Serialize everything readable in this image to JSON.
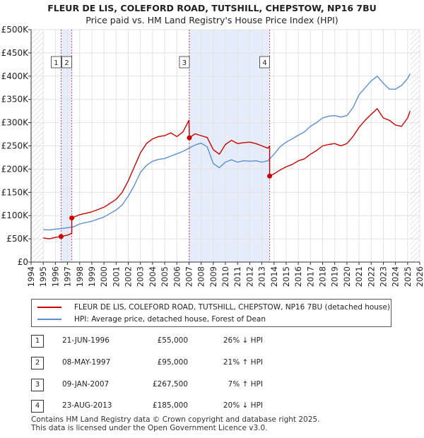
{
  "header": {
    "title": "FLEUR DE LIS, COLEFORD ROAD, TUTSHILL, CHEPSTOW, NP16 7BU",
    "subtitle": "Price paid vs. HM Land Registry's House Price Index (HPI)"
  },
  "colors": {
    "property": "#cc0000",
    "hpi": "#5b8fd0",
    "shade": "#e5ecfa",
    "marker_border": "#cc0000"
  },
  "chart_data": {
    "type": "line",
    "title": "FLEUR DE LIS, COLEFORD ROAD, TUTSHILL, CHEPSTOW, NP16 7BU",
    "subtitle": "Price paid vs. HM Land Registry's House Price Index (HPI)",
    "xlabel": "",
    "ylabel": "",
    "xlim": [
      1994,
      2026
    ],
    "ylim": [
      0,
      500000
    ],
    "y_ticks": [
      0,
      50000,
      100000,
      150000,
      200000,
      250000,
      300000,
      350000,
      400000,
      450000,
      500000
    ],
    "y_tick_labels": [
      "£0",
      "£50K",
      "£100K",
      "£150K",
      "£200K",
      "£250K",
      "£300K",
      "£350K",
      "£400K",
      "£450K",
      "£500K"
    ],
    "x_ticks": [
      1994,
      1995,
      1996,
      1997,
      1998,
      1999,
      2000,
      2001,
      2002,
      2003,
      2004,
      2005,
      2006,
      2007,
      2008,
      2009,
      2010,
      2011,
      2012,
      2013,
      2014,
      2015,
      2016,
      2017,
      2018,
      2019,
      2020,
      2021,
      2022,
      2023,
      2024,
      2025,
      2026
    ],
    "grid": true,
    "shaded_ranges": [
      [
        1996.47,
        1997.35
      ],
      [
        2007.03,
        2013.64
      ]
    ],
    "hatched_ranges": [
      [
        1994,
        1995
      ],
      [
        2025.2,
        2026
      ]
    ],
    "series": [
      {
        "name": "FLEUR DE LIS, COLEFORD ROAD, TUTSHILL, CHEPSTOW, NP16 7BU (detached house)",
        "x": [
          1995.0,
          1995.5,
          1996.0,
          1996.47,
          1996.47,
          1997.0,
          1997.35,
          1997.35,
          1998,
          1999,
          2000,
          2001,
          2001.5,
          2002,
          2002.5,
          2003,
          2003.5,
          2004,
          2004.5,
          2005,
          2005.5,
          2006,
          2006.5,
          2007.0,
          2007.03,
          2007.5,
          2008,
          2008.5,
          2009,
          2009.5,
          2010,
          2010.5,
          2011,
          2011.5,
          2012,
          2012.5,
          2013,
          2013.5,
          2013.64,
          2013.64,
          2014,
          2014.5,
          2015,
          2015.5,
          2016,
          2016.5,
          2017,
          2017.5,
          2018,
          2018.5,
          2019,
          2019.5,
          2020,
          2020.5,
          2021,
          2021.5,
          2022,
          2022.5,
          2023,
          2023.5,
          2024,
          2024.5,
          2025,
          2025.2
        ],
        "values": [
          52000,
          50000,
          53000,
          55000,
          55000,
          58000,
          62000,
          95000,
          102000,
          108000,
          118000,
          135000,
          150000,
          175000,
          205000,
          235000,
          255000,
          265000,
          270000,
          272000,
          278000,
          270000,
          280000,
          305000,
          267500,
          276000,
          272000,
          268000,
          242000,
          232000,
          253000,
          262000,
          255000,
          257000,
          258000,
          255000,
          250000,
          245000,
          250000,
          185000,
          190000,
          198000,
          205000,
          210000,
          218000,
          222000,
          232000,
          240000,
          250000,
          253000,
          255000,
          250000,
          255000,
          270000,
          290000,
          305000,
          318000,
          330000,
          310000,
          305000,
          295000,
          292000,
          310000,
          325000
        ]
      },
      {
        "name": "HPI: Average price, detached house, Forest of Dean",
        "x": [
          1995.0,
          1995.5,
          1996.0,
          1996.5,
          1997.0,
          1997.5,
          1998,
          1999,
          2000,
          2001,
          2001.5,
          2002,
          2002.5,
          2003,
          2003.5,
          2004,
          2004.5,
          2005,
          2005.5,
          2006,
          2006.5,
          2007,
          2007.5,
          2008,
          2008.5,
          2009,
          2009.5,
          2010,
          2010.5,
          2011,
          2011.5,
          2012,
          2012.5,
          2013,
          2013.5,
          2014,
          2014.5,
          2015,
          2015.5,
          2016,
          2016.5,
          2017,
          2017.5,
          2018,
          2018.5,
          2019,
          2019.5,
          2020,
          2020.5,
          2021,
          2021.5,
          2022,
          2022.5,
          2023,
          2023.5,
          2024,
          2024.5,
          2025,
          2025.2
        ],
        "values": [
          70000,
          69000,
          71000,
          72000,
          74000,
          76000,
          82000,
          88000,
          97000,
          112000,
          123000,
          142000,
          165000,
          193000,
          208000,
          217000,
          221000,
          223000,
          228000,
          233000,
          238000,
          245000,
          252000,
          256000,
          248000,
          212000,
          203000,
          215000,
          220000,
          215000,
          218000,
          217000,
          218000,
          215000,
          218000,
          232000,
          248000,
          258000,
          265000,
          273000,
          280000,
          292000,
          300000,
          310000,
          314000,
          315000,
          312000,
          315000,
          332000,
          360000,
          375000,
          390000,
          400000,
          385000,
          372000,
          372000,
          380000,
          395000,
          405000
        ]
      }
    ],
    "transactions": [
      {
        "label": "1",
        "x": 1996.47,
        "value": 55000
      },
      {
        "label": "2",
        "x": 1997.35,
        "value": 95000
      },
      {
        "label": "3",
        "x": 2007.03,
        "value": 267500
      },
      {
        "label": "4",
        "x": 2013.64,
        "value": 185000
      }
    ]
  },
  "legend": {
    "property_label": "FLEUR DE LIS, COLEFORD ROAD, TUTSHILL, CHEPSTOW, NP16 7BU (detached house)",
    "hpi_label": "HPI: Average price, detached house, Forest of Dean"
  },
  "transactions_table": [
    {
      "num": "1",
      "date": "21-JUN-1996",
      "price": "£55,000",
      "hpi": "26% ↓ HPI"
    },
    {
      "num": "2",
      "date": "08-MAY-1997",
      "price": "£95,000",
      "hpi": "21% ↑ HPI"
    },
    {
      "num": "3",
      "date": "09-JAN-2007",
      "price": "£267,500",
      "hpi": "7% ↑ HPI"
    },
    {
      "num": "4",
      "date": "23-AUG-2013",
      "price": "£185,000",
      "hpi": "20% ↓ HPI"
    }
  ],
  "footer": {
    "line1": "Contains HM Land Registry data © Crown copyright and database right 2025.",
    "line2": "This data is licensed under the Open Government Licence v3.0."
  }
}
